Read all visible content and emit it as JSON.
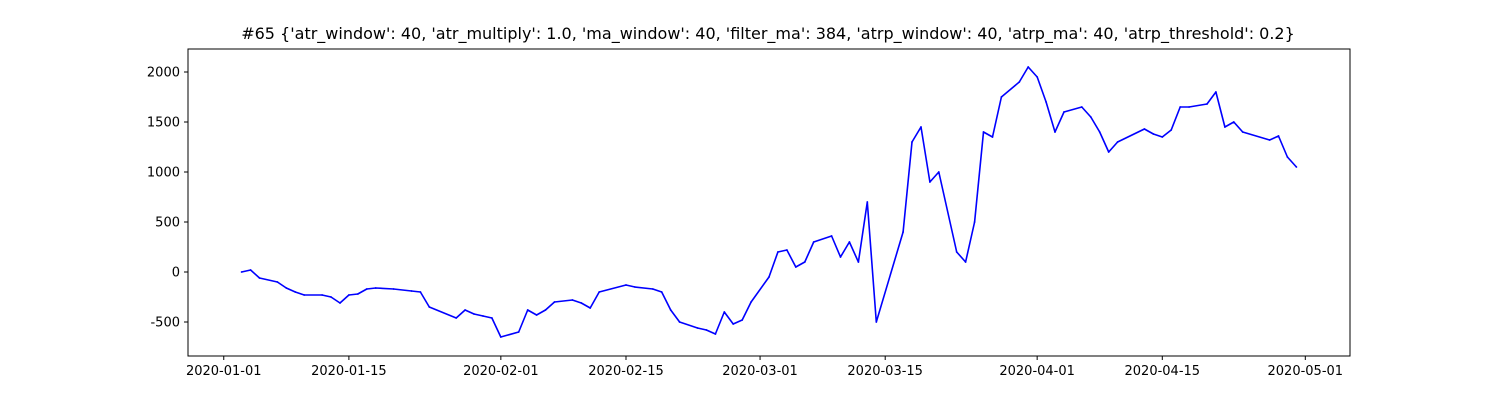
{
  "chart_data": {
    "type": "line",
    "title": "#65 {'atr_window': 40, 'atr_multiply': 1.0, 'ma_window': 40, 'filter_ma': 384, 'atrp_window': 40, 'atrp_ma': 40, 'atrp_threshold': 0.2}",
    "xlabel": "",
    "ylabel": "",
    "x_ticks": [
      "2020-01-01",
      "2020-01-15",
      "2020-02-01",
      "2020-02-15",
      "2020-03-01",
      "2020-03-15",
      "2020-04-01",
      "2020-04-15",
      "2020-05-01"
    ],
    "y_ticks": [
      -500,
      0,
      500,
      1000,
      1500,
      2000
    ],
    "xlim": [
      "2019-12-28",
      "2020-05-06"
    ],
    "ylim": [
      -840,
      2230
    ],
    "grid": false,
    "colors": {
      "line": "#0000ff"
    },
    "series": [
      {
        "x": [
          "2020-01-03",
          "2020-01-04",
          "2020-01-05",
          "2020-01-07",
          "2020-01-08",
          "2020-01-09",
          "2020-01-10",
          "2020-01-12",
          "2020-01-13",
          "2020-01-14",
          "2020-01-15",
          "2020-01-16",
          "2020-01-17",
          "2020-01-18",
          "2020-01-20",
          "2020-01-22",
          "2020-01-23",
          "2020-01-24",
          "2020-01-27",
          "2020-01-28",
          "2020-01-29",
          "2020-01-30",
          "2020-01-31",
          "2020-02-01",
          "2020-02-03",
          "2020-02-04",
          "2020-02-05",
          "2020-02-06",
          "2020-02-07",
          "2020-02-09",
          "2020-02-10",
          "2020-02-11",
          "2020-02-12",
          "2020-02-15",
          "2020-02-16",
          "2020-02-18",
          "2020-02-19",
          "2020-02-20",
          "2020-02-21",
          "2020-02-23",
          "2020-02-24",
          "2020-02-25",
          "2020-02-26",
          "2020-02-27",
          "2020-02-28",
          "2020-02-29",
          "2020-03-02",
          "2020-03-03",
          "2020-03-04",
          "2020-03-05",
          "2020-03-06",
          "2020-03-07",
          "2020-03-09",
          "2020-03-10",
          "2020-03-11",
          "2020-03-12",
          "2020-03-13",
          "2020-03-14",
          "2020-03-17",
          "2020-03-18",
          "2020-03-19",
          "2020-03-20",
          "2020-03-21",
          "2020-03-23",
          "2020-03-24",
          "2020-03-25",
          "2020-03-26",
          "2020-03-27",
          "2020-03-28",
          "2020-03-30",
          "2020-03-31",
          "2020-04-01",
          "2020-04-02",
          "2020-04-03",
          "2020-04-04",
          "2020-04-06",
          "2020-04-07",
          "2020-04-08",
          "2020-04-09",
          "2020-04-10",
          "2020-04-13",
          "2020-04-14",
          "2020-04-15",
          "2020-04-16",
          "2020-04-17",
          "2020-04-18",
          "2020-04-20",
          "2020-04-21",
          "2020-04-22",
          "2020-04-23",
          "2020-04-24",
          "2020-04-27",
          "2020-04-28",
          "2020-04-29",
          "2020-04-30"
        ],
        "values": [
          0,
          20,
          -60,
          -100,
          -160,
          -200,
          -230,
          -230,
          -250,
          -310,
          -230,
          -220,
          -170,
          -160,
          -170,
          -190,
          -200,
          -350,
          -460,
          -380,
          -420,
          -440,
          -460,
          -650,
          -600,
          -380,
          -430,
          -380,
          -300,
          -280,
          -310,
          -360,
          -200,
          -130,
          -150,
          -170,
          -200,
          -380,
          -500,
          -560,
          -580,
          -620,
          -400,
          -520,
          -480,
          -300,
          -50,
          200,
          220,
          50,
          100,
          300,
          360,
          150,
          300,
          100,
          700,
          -500,
          400,
          1300,
          1450,
          900,
          1000,
          200,
          100,
          500,
          1400,
          1350,
          1750,
          1900,
          2050,
          1950,
          1700,
          1400,
          1600,
          1650,
          1550,
          1400,
          1200,
          1300,
          1430,
          1380,
          1350,
          1420,
          1650,
          1650,
          1680,
          1800,
          1450,
          1500,
          1400,
          1320,
          1360,
          1150,
          1050
        ]
      }
    ]
  }
}
